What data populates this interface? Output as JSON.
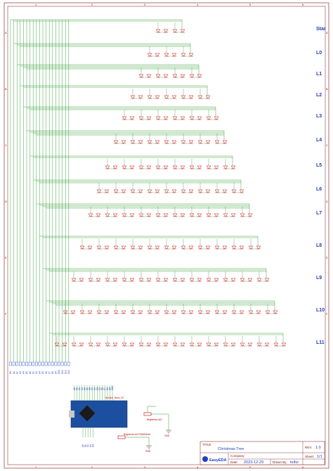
{
  "levels": [
    "Star",
    "L0",
    "L1",
    "L2",
    "L3",
    "L4",
    "L5",
    "L6",
    "L7",
    "L8",
    "L9",
    "L10",
    "L11"
  ],
  "led_counts": [
    2,
    3,
    4,
    5,
    6,
    7,
    8,
    9,
    10,
    11,
    12,
    13,
    14
  ],
  "pins": [
    "A0",
    "A1",
    "A2",
    "A3",
    "A4",
    "A5",
    "A6",
    "D2",
    "D3",
    "D4",
    "D5",
    "D6",
    "D7",
    "D8",
    "D9",
    "D10",
    "D11",
    "D12",
    "D13"
  ],
  "board": {
    "name": "Arduino_Nano_V3"
  },
  "pots": {
    "brightness_adj": "Brightness ADJ",
    "brightness_auto": "Brightness AUTO/MANUAL"
  },
  "gnd_label": "GND",
  "border": {
    "columns": [
      "1",
      "2",
      "3",
      "4",
      "5",
      "6"
    ],
    "rows": [
      "A",
      "B",
      "C",
      "D",
      "E",
      "F"
    ]
  },
  "title_block": {
    "title_label": "TITLE:",
    "title": "Christmas Tree",
    "rev_label": "REV:",
    "rev": "1.0",
    "company_label": "Company:",
    "date_label": "Date:",
    "date": "2023-12-29",
    "drawn_label": "Drawn By:",
    "drawn_by": "teifur",
    "sheet_label": "Sheet:",
    "sheet": "1/1",
    "logo": "EasyEDA"
  },
  "colors": {
    "wire": "#2e9c2e",
    "label": "#1f3fbf",
    "part": "#c00000",
    "frame": "#7a1414"
  }
}
